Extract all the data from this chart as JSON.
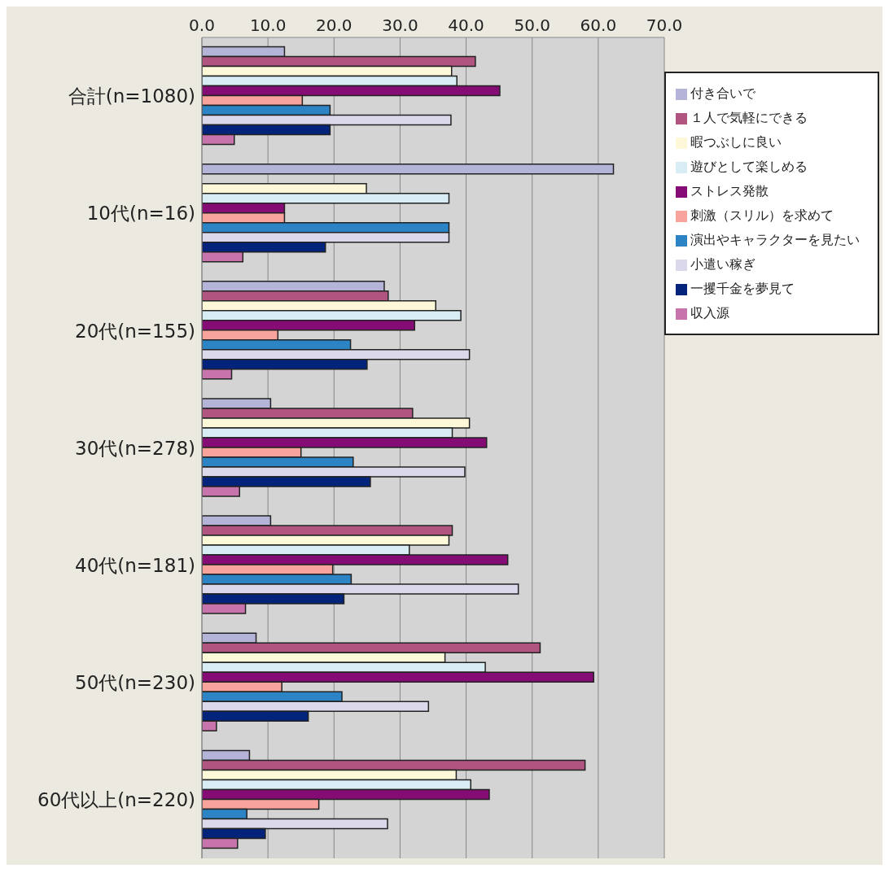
{
  "chart_data": {
    "type": "bar",
    "orientation": "horizontal",
    "categories": [
      "合計(n=1080)",
      "10代(n=16)",
      "20代(n=155)",
      "30代(n=278)",
      "40代(n=181)",
      "50代(n=230)",
      "60代以上(n=220)"
    ],
    "series": [
      {
        "name": "付き合いで",
        "color": "#b4b4d8",
        "values": [
          12.5,
          62.3,
          27.6,
          10.4,
          10.4,
          8.2,
          7.2
        ]
      },
      {
        "name": "１人で気軽にできる",
        "color": "#b05480",
        "values": [
          41.4,
          0,
          28.2,
          31.9,
          37.9,
          51.2,
          58.0
        ]
      },
      {
        "name": "暇つぶしに良い",
        "color": "#fcf8d8",
        "values": [
          37.8,
          24.9,
          35.4,
          40.5,
          37.4,
          36.8,
          38.5
        ]
      },
      {
        "name": "遊びとして楽しめる",
        "color": "#d8ecf4",
        "values": [
          38.6,
          37.4,
          39.2,
          37.9,
          31.4,
          42.9,
          40.7
        ]
      },
      {
        "name": "ストレス発散",
        "color": "#840c74",
        "values": [
          45.1,
          12.5,
          32.2,
          43.1,
          46.3,
          59.3,
          43.5
        ]
      },
      {
        "name": "刺激（スリル）を求めて",
        "color": "#f8a49c",
        "values": [
          15.2,
          12.5,
          11.5,
          15.0,
          19.8,
          12.1,
          17.7
        ]
      },
      {
        "name": "演出やキャラクターを見たい",
        "color": "#2c84c4",
        "values": [
          19.4,
          37.4,
          22.5,
          22.9,
          22.6,
          21.2,
          6.8
        ]
      },
      {
        "name": "小遣い稼ぎ",
        "color": "#dcd8ec",
        "values": [
          37.7,
          37.4,
          40.5,
          39.8,
          47.9,
          34.3,
          28.1
        ]
      },
      {
        "name": "一攫千金を夢見て",
        "color": "#04247c",
        "values": [
          19.4,
          18.7,
          25.0,
          25.5,
          21.5,
          16.1,
          9.6
        ]
      },
      {
        "name": "収入源",
        "color": "#c874ac",
        "values": [
          4.9,
          6.2,
          4.5,
          5.7,
          6.6,
          2.2,
          5.4
        ]
      }
    ],
    "xlim": [
      0,
      70
    ],
    "xticks": [
      {
        "value": 0,
        "label": "0.0"
      },
      {
        "value": 10,
        "label": "10.0"
      },
      {
        "value": 20,
        "label": "20.0"
      },
      {
        "value": 30,
        "label": "30.0"
      },
      {
        "value": 40,
        "label": "40.0"
      },
      {
        "value": 50,
        "label": "50.0"
      },
      {
        "value": 60,
        "label": "60.0"
      },
      {
        "value": 70,
        "label": "70.0"
      }
    ],
    "grid": "x",
    "legend": "top right"
  }
}
